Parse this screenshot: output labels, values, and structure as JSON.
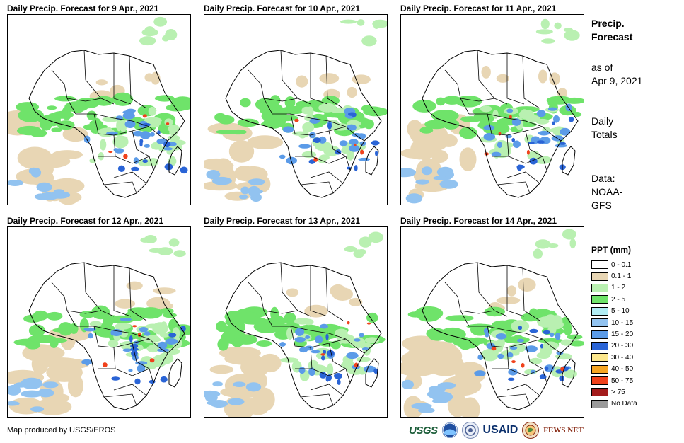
{
  "panels": [
    {
      "title": "Daily Precip. Forecast for 9 Apr., 2021"
    },
    {
      "title": "Daily Precip. Forecast for 10 Apr., 2021"
    },
    {
      "title": "Daily Precip. Forecast for 11 Apr., 2021"
    },
    {
      "title": "Daily Precip. Forecast for 12 Apr., 2021"
    },
    {
      "title": "Daily Precip. Forecast for 13 Apr., 2021"
    },
    {
      "title": "Daily Precip. Forecast for 14 Apr., 2021"
    }
  ],
  "sidebar": {
    "heading_line1": "Precip.",
    "heading_line2": "Forecast",
    "asof_line1": "as of",
    "asof_line2": "Apr 9, 2021",
    "totals_line1": "Daily",
    "totals_line2": "Totals",
    "data_line1": "Data:",
    "data_line2": "NOAA-",
    "data_line3": "GFS"
  },
  "legend": {
    "title": "PPT (mm)",
    "items": [
      {
        "label": "0 - 0.1",
        "color": "#ffffff"
      },
      {
        "label": "0.1 - 1",
        "color": "#e8d6b4"
      },
      {
        "label": "1 - 2",
        "color": "#b9f0b1"
      },
      {
        "label": "2 - 5",
        "color": "#6fe36a"
      },
      {
        "label": "5 - 10",
        "color": "#b0ecf4"
      },
      {
        "label": "10 - 15",
        "color": "#92c3f0"
      },
      {
        "label": "15 - 20",
        "color": "#5b9be8"
      },
      {
        "label": "20 - 30",
        "color": "#2a64d6"
      },
      {
        "label": "30 - 40",
        "color": "#fde88d"
      },
      {
        "label": "40 - 50",
        "color": "#f6a623"
      },
      {
        "label": "50 - 75",
        "color": "#f0421c"
      },
      {
        "label": "> 75",
        "color": "#a41c1c"
      },
      {
        "label": "No Data",
        "color": "#9a9a9a"
      }
    ]
  },
  "credit": "Map produced by USGS/EROS",
  "logos": {
    "usgs": "USGS",
    "usaid": "USAID",
    "fews": "FEWS NET"
  }
}
